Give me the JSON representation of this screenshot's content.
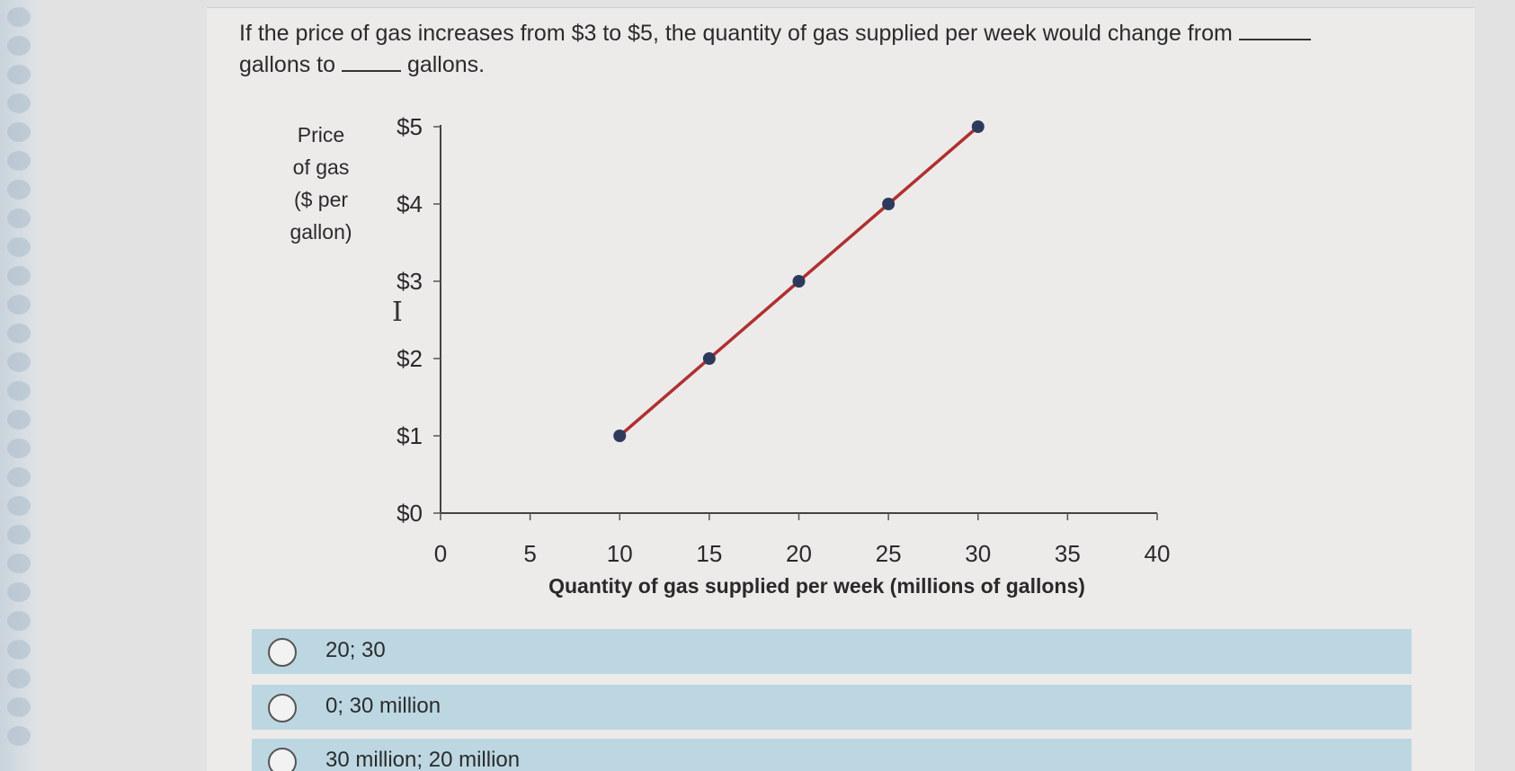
{
  "question": {
    "text_part1": "If the price of gas increases from $3 to $5, the quantity of gas supplied per week would change from",
    "text_part2": "gallons to",
    "text_part3": "gallons."
  },
  "chart_data": {
    "type": "line",
    "xlabel": "Quantity of gas supplied per week (millions of gallons)",
    "ylabel_lines": [
      "Price",
      "of gas",
      "($ per",
      "gallon)"
    ],
    "x_ticks": [
      "0",
      "5",
      "10",
      "15",
      "20",
      "25",
      "30",
      "35",
      "40"
    ],
    "y_ticks": [
      "$0",
      "$1",
      "$2",
      "$3",
      "$4",
      "$5"
    ],
    "xlim": [
      0,
      40
    ],
    "ylim": [
      0,
      5
    ],
    "series": [
      {
        "x": [
          10,
          15,
          20,
          25,
          30
        ],
        "y": [
          1,
          2,
          3,
          4,
          5
        ]
      }
    ],
    "line_color": "#b03030",
    "point_color": "#2e3a5c"
  },
  "options": [
    {
      "label": "20; 30"
    },
    {
      "label": "0; 30 million"
    },
    {
      "label": "30 million; 20 million"
    }
  ]
}
